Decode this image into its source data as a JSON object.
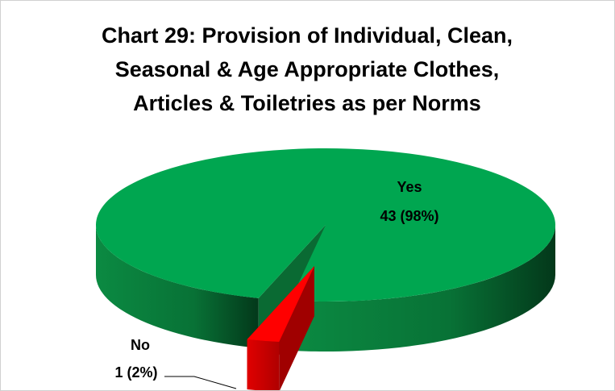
{
  "chart_data": {
    "type": "pie3d",
    "title": "Chart 29: Provision of Individual, Clean, Seasonal & Age Appropriate Clothes, Articles & Toiletries as per Norms",
    "categories": [
      "Yes",
      "No"
    ],
    "values": [
      43,
      1
    ],
    "value_labels": [
      "43 (98%)",
      "1 (2%)"
    ],
    "colors": [
      "#00a650",
      "#ff0000"
    ]
  }
}
